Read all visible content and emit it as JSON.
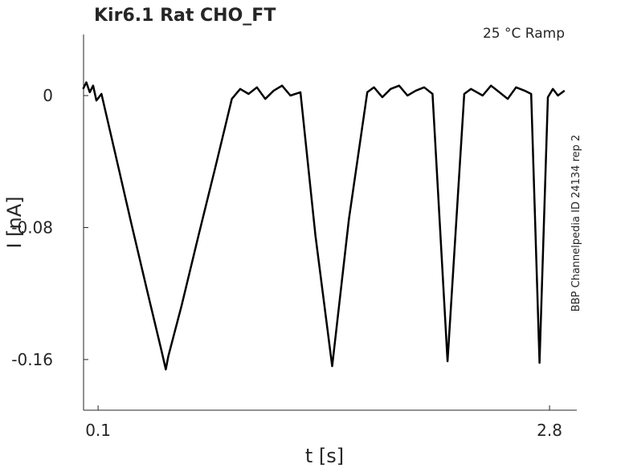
{
  "chart_data": {
    "type": "line",
    "title": "Kir6.1  Rat  CHO_FT",
    "annotation": "25 °C  Ramp",
    "side_note": "BBP Channelpedia ID 24134 rep 2",
    "xlabel": "t [s]",
    "ylabel": "I [nA]",
    "x": [
      0.01,
      0.03,
      0.05,
      0.07,
      0.09,
      0.12,
      0.2,
      0.3,
      0.4,
      0.48,
      0.505,
      0.52,
      0.6,
      0.7,
      0.8,
      0.9,
      0.95,
      1.0,
      1.05,
      1.1,
      1.15,
      1.2,
      1.25,
      1.31,
      1.4,
      1.5,
      1.6,
      1.71,
      1.75,
      1.8,
      1.85,
      1.9,
      1.95,
      2.0,
      2.05,
      2.1,
      2.19,
      2.29,
      2.33,
      2.4,
      2.45,
      2.5,
      2.55,
      2.6,
      2.65,
      2.69,
      2.74,
      2.79,
      2.82,
      2.85,
      2.89
    ],
    "series": [
      {
        "name": "I",
        "color": "#000000",
        "values": [
          0.004,
          0.008,
          0.002,
          0.006,
          -0.003,
          0.001,
          -0.034,
          -0.078,
          -0.121,
          -0.155,
          -0.166,
          -0.158,
          -0.127,
          -0.085,
          -0.044,
          -0.002,
          0.004,
          0.001,
          0.005,
          -0.002,
          0.003,
          0.006,
          0.0,
          0.002,
          -0.085,
          -0.164,
          -0.075,
          0.002,
          0.005,
          -0.001,
          0.004,
          0.006,
          0.0,
          0.003,
          0.005,
          0.001,
          -0.161,
          0.001,
          0.004,
          0.0,
          0.006,
          0.002,
          -0.002,
          0.005,
          0.003,
          0.001,
          -0.162,
          -0.001,
          0.004,
          0.0,
          0.003
        ]
      }
    ],
    "xlim": [
      0.013,
      2.963
    ],
    "ylim": [
      -0.1907,
      0.037
    ],
    "xticks": [
      0.1,
      2.8
    ],
    "yticks": [
      0,
      -0.08,
      -0.16
    ]
  }
}
